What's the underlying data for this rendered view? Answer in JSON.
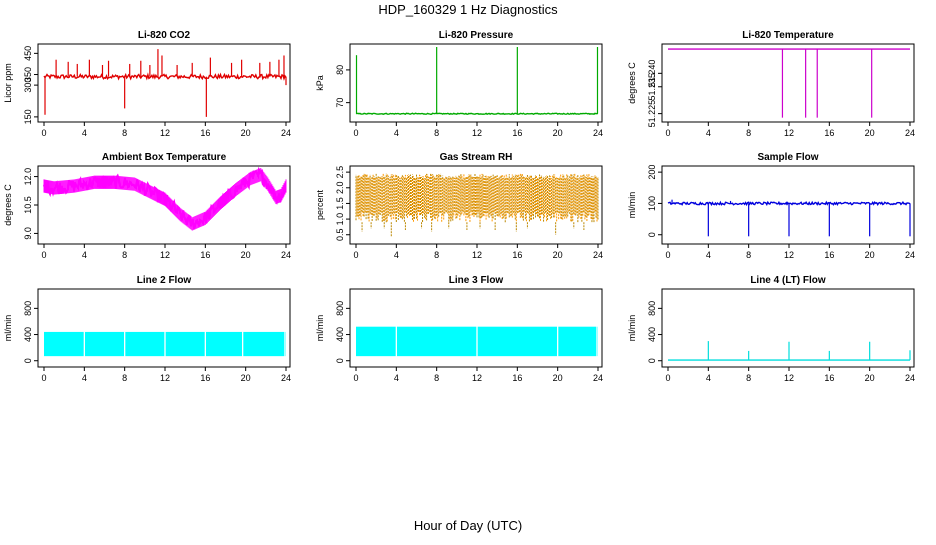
{
  "title": "HDP_160329  1 Hz Diagnostics",
  "xlabel": "Hour of Day (UTC)",
  "chart_data": [
    {
      "type": "line",
      "title": "Li-820 CO2",
      "ylabel": "Licor ppm",
      "color": "#e00000",
      "xlim": [
        0,
        24
      ],
      "xticks": [
        "0",
        "4",
        "8",
        "12",
        "16",
        "20",
        "24"
      ],
      "ylim": [
        140,
        480
      ],
      "yticks": [
        {
          "v": 150,
          "label": "150"
        },
        {
          "v": 300,
          "label": "300"
        },
        {
          "v": 350,
          "label": "350"
        },
        {
          "v": 450,
          "label": "450"
        }
      ],
      "baseline": 340,
      "noise": 10,
      "spikes_up": [
        [
          1.2,
          420
        ],
        [
          2.4,
          410
        ],
        [
          3.3,
          400
        ],
        [
          4.5,
          420
        ],
        [
          5.8,
          395
        ],
        [
          6.4,
          415
        ],
        [
          8.5,
          400
        ],
        [
          9.6,
          415
        ],
        [
          10.5,
          395
        ],
        [
          11.3,
          470
        ],
        [
          11.7,
          440
        ],
        [
          13.2,
          395
        ],
        [
          14.7,
          405
        ],
        [
          16.5,
          430
        ],
        [
          18.6,
          405
        ],
        [
          19.6,
          420
        ],
        [
          21.4,
          405
        ],
        [
          22.4,
          410
        ],
        [
          23.3,
          420
        ],
        [
          23.8,
          440
        ]
      ],
      "spikes_down": [
        [
          0.1,
          160
        ],
        [
          8.0,
          190
        ],
        [
          16.1,
          150
        ],
        [
          24.0,
          300
        ]
      ]
    },
    {
      "type": "line",
      "title": "Li-820 Pressure",
      "ylabel": "kPa",
      "color": "#00aa00",
      "xlim": [
        0,
        24
      ],
      "xticks": [
        "0",
        "4",
        "8",
        "12",
        "16",
        "20",
        "24"
      ],
      "ylim": [
        65,
        87
      ],
      "yticks": [
        {
          "v": 70,
          "label": "70"
        },
        {
          "v": 80,
          "label": "80"
        }
      ],
      "baseline": 66.6,
      "noise": 0.15,
      "spikes_up": [
        [
          0.05,
          84.5
        ],
        [
          8.0,
          87
        ],
        [
          16.0,
          87
        ],
        [
          23.95,
          87
        ]
      ],
      "spikes_down": []
    },
    {
      "type": "line",
      "title": "Li-820 Temperature",
      "ylabel": "degrees C",
      "color": "#cc00cc",
      "xlim": [
        0,
        24
      ],
      "xticks": [
        "0",
        "4",
        "8",
        "12",
        "16",
        "20",
        "24"
      ],
      "ylim": [
        51.223,
        51.2498
      ],
      "yticks": [
        {
          "v": 51.225,
          "label": "51.225"
        },
        {
          "v": 51.235,
          "label": "51.235"
        },
        {
          "v": 51.24,
          "label": "51.240"
        }
      ],
      "baseline": 51.249,
      "noise": 0,
      "spikes_up": [],
      "spikes_down": [
        [
          11.35,
          51.2235
        ],
        [
          13.65,
          51.2235
        ],
        [
          14.8,
          51.2235
        ],
        [
          20.2,
          51.2235
        ]
      ]
    },
    {
      "type": "line",
      "title": "Ambient Box Temperature",
      "ylabel": "degrees C",
      "color": "#ff00ff",
      "xlim": [
        0,
        24
      ],
      "xticks": [
        "0",
        "4",
        "8",
        "12",
        "16",
        "20",
        "24"
      ],
      "ylim": [
        8.6,
        12.4
      ],
      "yticks": [
        {
          "v": 9.0,
          "label": "9.0"
        },
        {
          "v": 10.5,
          "label": "10.5"
        },
        {
          "v": 12.0,
          "label": "12.0"
        }
      ],
      "curve": [
        [
          0,
          11.5
        ],
        [
          1,
          11.4
        ],
        [
          3,
          11.5
        ],
        [
          5,
          11.7
        ],
        [
          7,
          11.7
        ],
        [
          9,
          11.6
        ],
        [
          10.5,
          11.2
        ],
        [
          12,
          10.8
        ],
        [
          13.5,
          10.0
        ],
        [
          14.7,
          9.5
        ],
        [
          16,
          9.8
        ],
        [
          17.5,
          10.6
        ],
        [
          19,
          11.3
        ],
        [
          20.5,
          11.9
        ],
        [
          21.5,
          12.1
        ],
        [
          22.2,
          11.6
        ],
        [
          23,
          10.9
        ],
        [
          23.5,
          11.0
        ],
        [
          24,
          11.5
        ]
      ],
      "noise": 0.35,
      "spikes_up": [],
      "spikes_down": []
    },
    {
      "type": "line",
      "title": "Gas Stream RH",
      "ylabel": "percent",
      "color": "#ff9900",
      "color2": "#bb8800",
      "xlim": [
        0,
        24
      ],
      "xticks": [
        "0",
        "4",
        "8",
        "12",
        "16",
        "20",
        "24"
      ],
      "ylim": [
        0.3,
        2.6
      ],
      "yticks": [
        {
          "v": 0.5,
          "label": "0.5"
        },
        {
          "v": 1.0,
          "label": "1.0"
        },
        {
          "v": 1.5,
          "label": "1.5"
        },
        {
          "v": 2.0,
          "label": "2.0"
        },
        {
          "v": 2.5,
          "label": "2.5"
        }
      ],
      "band": [
        0.9,
        2.45
      ],
      "spikes_down": [
        [
          0.6,
          0.6
        ],
        [
          1.5,
          0.7
        ],
        [
          2.8,
          0.7
        ],
        [
          3.5,
          0.45
        ],
        [
          4.9,
          0.65
        ],
        [
          6.5,
          0.7
        ],
        [
          7.5,
          0.6
        ],
        [
          9.2,
          0.7
        ],
        [
          11.0,
          0.65
        ],
        [
          12.3,
          0.7
        ],
        [
          13.8,
          0.65
        ],
        [
          15.9,
          0.6
        ],
        [
          17.0,
          0.7
        ],
        [
          19.8,
          0.5
        ],
        [
          21.6,
          0.7
        ],
        [
          22.6,
          0.65
        ]
      ]
    },
    {
      "type": "line",
      "title": "Sample Flow",
      "ylabel": "ml/min",
      "color": "#0000dd",
      "xlim": [
        0,
        24
      ],
      "xticks": [
        "0",
        "4",
        "8",
        "12",
        "16",
        "20",
        "24"
      ],
      "ylim": [
        -20,
        210
      ],
      "yticks": [
        {
          "v": 0,
          "label": "0"
        },
        {
          "v": 100,
          "label": "100"
        },
        {
          "v": 200,
          "label": "200"
        }
      ],
      "baseline": 100,
      "noise": 4,
      "spikes_up": [
        [
          0.4,
          112
        ],
        [
          6.2,
          108
        ],
        [
          11.8,
          106
        ]
      ],
      "spikes_down": [
        [
          4.0,
          -5
        ],
        [
          8.0,
          -5
        ],
        [
          12.0,
          -5
        ],
        [
          16.0,
          -5
        ],
        [
          20.0,
          -5
        ],
        [
          24.0,
          -5
        ]
      ]
    },
    {
      "type": "area",
      "title": "Line 2 Flow",
      "ylabel": "ml/min",
      "color": "#00ffff",
      "xlim": [
        0,
        24
      ],
      "xticks": [
        "0",
        "4",
        "8",
        "12",
        "16",
        "20",
        "24"
      ],
      "ylim": [
        -50,
        1050
      ],
      "yticks": [
        {
          "v": 0,
          "label": "0"
        },
        {
          "v": 400,
          "label": "400"
        },
        {
          "v": 800,
          "label": "800"
        }
      ],
      "band": [
        70,
        440
      ],
      "gaps": [
        4.0,
        8.0,
        12.0,
        16.0,
        19.7,
        23.9
      ]
    },
    {
      "type": "area",
      "title": "Line 3 Flow",
      "ylabel": "ml/min",
      "color": "#00ffff",
      "xlim": [
        0,
        24
      ],
      "xticks": [
        "0",
        "4",
        "8",
        "12",
        "16",
        "20",
        "24"
      ],
      "ylim": [
        -50,
        1050
      ],
      "yticks": [
        {
          "v": 0,
          "label": "0"
        },
        {
          "v": 400,
          "label": "400"
        },
        {
          "v": 800,
          "label": "800"
        }
      ],
      "band": [
        70,
        520
      ],
      "gaps": [
        4.0,
        12.0,
        20.0,
        23.9
      ]
    },
    {
      "type": "line",
      "title": "Line 4 (LT) Flow",
      "ylabel": "ml/min",
      "color": "#00dddd",
      "xlim": [
        0,
        24
      ],
      "xticks": [
        "0",
        "4",
        "8",
        "12",
        "16",
        "20",
        "24"
      ],
      "ylim": [
        -50,
        1050
      ],
      "yticks": [
        {
          "v": 0,
          "label": "0"
        },
        {
          "v": 400,
          "label": "400"
        },
        {
          "v": 800,
          "label": "800"
        }
      ],
      "baseline": 10,
      "noise": 0,
      "spikes_up": [
        [
          4.0,
          300
        ],
        [
          8.0,
          150
        ],
        [
          12.0,
          290
        ],
        [
          16.0,
          150
        ],
        [
          20.0,
          290
        ],
        [
          24.0,
          160
        ]
      ],
      "spikes_down": []
    }
  ]
}
